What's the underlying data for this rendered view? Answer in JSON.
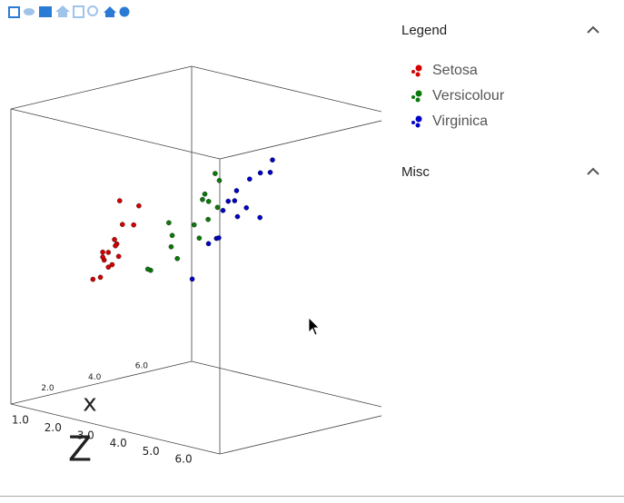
{
  "chart_data": {
    "type": "scatter3d",
    "x_label": "x",
    "z_label": "Z",
    "xlim": [
      0.2,
      7.9
    ],
    "ylim": [
      2,
      8
    ],
    "zlim": [
      0.6,
      7.0
    ],
    "xticks": [
      {
        "value": 2,
        "label": "2.0"
      },
      {
        "value": 4,
        "label": "4.0"
      },
      {
        "value": 6,
        "label": "6.0"
      }
    ],
    "zticks": [
      {
        "value": 1,
        "label": "1.0"
      },
      {
        "value": 2,
        "label": "2.0"
      },
      {
        "value": 3,
        "label": "3.0"
      },
      {
        "value": 4,
        "label": "4.0"
      },
      {
        "value": 5,
        "label": "5.0"
      },
      {
        "value": 6,
        "label": "6.0"
      }
    ],
    "series": [
      {
        "name": "Setosa",
        "color": "#d40000",
        "x": [
          3.5,
          3.0,
          3.2,
          3.1,
          3.6,
          3.9,
          3.4,
          3.4,
          2.9,
          3.1,
          3.7,
          3.4,
          3.0,
          3.0,
          4.0,
          4.4
        ],
        "y": [
          5.1,
          4.9,
          4.7,
          4.6,
          5.0,
          5.4,
          4.6,
          5.0,
          4.4,
          4.9,
          5.4,
          4.8,
          4.8,
          4.3,
          5.8,
          5.7
        ],
        "z": [
          1.4,
          1.4,
          1.3,
          1.5,
          1.4,
          1.7,
          1.4,
          1.5,
          1.4,
          1.5,
          1.5,
          1.6,
          1.4,
          1.1,
          1.2,
          1.5
        ]
      },
      {
        "name": "Versicolour",
        "color": "#0a7a0a",
        "x": [
          3.2,
          3.2,
          3.1,
          2.3,
          2.8,
          2.8,
          3.3,
          2.4,
          2.9,
          2.7,
          2.0,
          3.0,
          2.2,
          2.9,
          2.9
        ],
        "y": [
          7.0,
          6.4,
          6.9,
          5.5,
          6.5,
          5.7,
          6.3,
          4.9,
          6.6,
          5.2,
          5.0,
          5.9,
          6.0,
          6.1,
          5.6
        ],
        "z": [
          4.7,
          4.5,
          4.9,
          4.0,
          4.6,
          4.5,
          4.7,
          3.3,
          4.6,
          3.9,
          3.5,
          4.2,
          4.0,
          4.7,
          3.6
        ]
      },
      {
        "name": "Virginica",
        "color": "#0000c8",
        "x": [
          3.3,
          2.7,
          3.0,
          2.9,
          3.0,
          3.0,
          2.5,
          2.9,
          2.5,
          3.6,
          3.2,
          2.7,
          3.0,
          2.5,
          2.8
        ],
        "y": [
          6.3,
          5.8,
          7.1,
          6.3,
          6.5,
          7.6,
          4.9,
          7.3,
          6.7,
          7.2,
          6.5,
          6.4,
          6.8,
          5.7,
          5.8
        ],
        "z": [
          6.0,
          5.1,
          5.9,
          5.6,
          5.8,
          6.6,
          4.5,
          6.3,
          5.8,
          6.1,
          5.1,
          5.3,
          5.5,
          5.0,
          5.1
        ]
      }
    ]
  },
  "panel": {
    "legend_title": "Legend",
    "misc_title": "Misc"
  }
}
